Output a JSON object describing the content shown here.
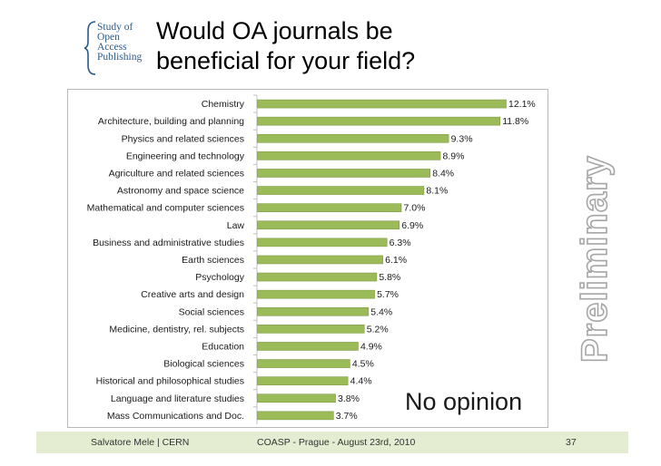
{
  "logo": {
    "lines": [
      "Study of",
      "Open",
      "Access",
      "Publishing"
    ]
  },
  "title": {
    "line1": "Would OA journals be",
    "line2": "beneficial for your field?"
  },
  "watermark": "Preliminary",
  "annotation": "No opinion",
  "footer": {
    "left": "Salvatore Mele | CERN",
    "center": "COASP - Prague - August 23rd, 2010",
    "page": "37"
  },
  "colors": {
    "bar": "#9bbb59",
    "bar_stroke": "#7f9c44",
    "watermark": "#a6a6a6",
    "footer_bg": "#e4ecd2",
    "logo": "#2a5a8a"
  },
  "chart_data": {
    "type": "bar",
    "orientation": "horizontal",
    "categories": [
      "Chemistry",
      "Architecture, building and planning",
      "Physics and related sciences",
      "Engineering and technology",
      "Agriculture and related sciences",
      "Astronomy and space science",
      "Mathematical and computer sciences",
      "Law",
      "Business and administrative studies",
      "Earth sciences",
      "Psychology",
      "Creative arts and design",
      "Social sciences",
      "Medicine, dentistry, rel. subjects",
      "Education",
      "Biological sciences",
      "Historical and philosophical studies",
      "Language and literature studies",
      "Mass Communications and Doc."
    ],
    "values": [
      12.1,
      11.8,
      9.3,
      8.9,
      8.4,
      8.1,
      7.0,
      6.9,
      6.3,
      6.1,
      5.8,
      5.7,
      5.4,
      5.2,
      4.9,
      4.5,
      4.4,
      3.8,
      3.7
    ],
    "value_labels": [
      "12.1%",
      "11.8%",
      "9.3%",
      "8.9%",
      "8.4%",
      "8.1%",
      "7.0%",
      "6.9%",
      "6.3%",
      "6.1%",
      "5.8%",
      "5.7%",
      "5.4%",
      "5.2%",
      "4.9%",
      "4.5%",
      "4.4%",
      "3.8%",
      "3.7%"
    ],
    "xlim": [
      0,
      12.1
    ],
    "grid": false,
    "legend": "none"
  }
}
